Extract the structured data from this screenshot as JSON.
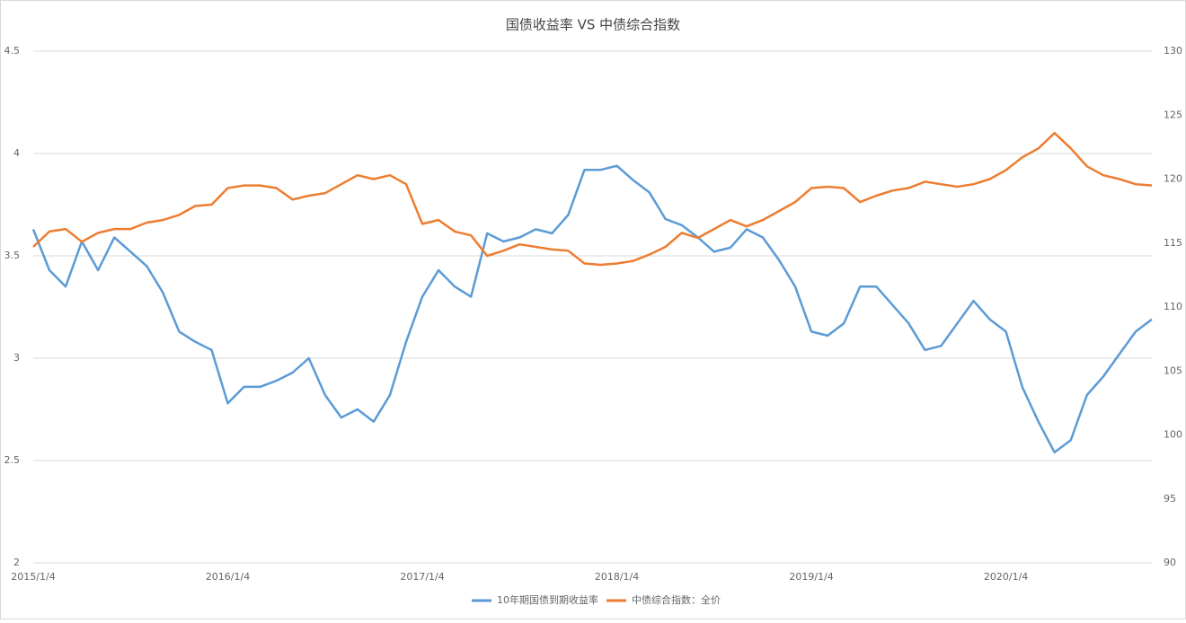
{
  "chart_data": {
    "type": "line",
    "title": "国债收益率 VS 中债综合指数",
    "categories": [
      "2015/1/4",
      null,
      null,
      null,
      null,
      null,
      null,
      null,
      null,
      null,
      null,
      null,
      "2016/1/4",
      null,
      null,
      null,
      null,
      null,
      null,
      null,
      null,
      null,
      null,
      null,
      "2017/1/4",
      null,
      null,
      null,
      null,
      null,
      null,
      null,
      null,
      null,
      null,
      null,
      "2018/1/4",
      null,
      null,
      null,
      null,
      null,
      null,
      null,
      null,
      null,
      null,
      null,
      "2019/1/4",
      null,
      null,
      null,
      null,
      null,
      null,
      null,
      null,
      null,
      null,
      null,
      "2020/1/4",
      null,
      null,
      null,
      null,
      null,
      null,
      null,
      null,
      null
    ],
    "series": [
      {
        "name": "10年期国债到期收益率",
        "color": "#5b9bd5",
        "values": [
          3.63,
          3.43,
          3.35,
          3.57,
          3.43,
          3.59,
          3.52,
          3.45,
          3.32,
          3.13,
          3.08,
          3.04,
          2.78,
          2.86,
          2.86,
          2.89,
          2.93,
          3.0,
          2.82,
          2.71,
          2.75,
          2.69,
          2.82,
          3.08,
          3.3,
          3.43,
          3.35,
          3.3,
          3.61,
          3.57,
          3.59,
          3.63,
          3.61,
          3.7,
          3.92,
          3.92,
          3.94,
          3.87,
          3.81,
          3.68,
          3.65,
          3.59,
          3.52,
          3.54,
          3.63,
          3.59,
          3.48,
          3.35,
          3.13,
          3.11,
          3.17,
          3.35,
          3.35,
          3.26,
          3.17,
          3.04,
          3.06,
          3.17,
          3.28,
          3.19,
          3.13,
          2.86,
          2.69,
          2.54,
          2.6,
          2.82,
          2.91,
          3.02,
          3.13,
          3.19
        ]
      },
      {
        "name": "中债综合指数：全价",
        "color": "#ed7d31",
        "axis": "y2",
        "values": [
          114.7,
          115.9,
          116.1,
          115.1,
          115.8,
          116.1,
          116.1,
          116.6,
          116.8,
          117.2,
          117.9,
          118.0,
          119.3,
          119.5,
          119.5,
          119.3,
          118.4,
          118.7,
          118.9,
          119.6,
          120.3,
          120.0,
          120.3,
          119.6,
          116.5,
          116.8,
          115.9,
          115.6,
          114.0,
          114.4,
          114.9,
          114.7,
          114.5,
          114.4,
          113.4,
          113.3,
          113.4,
          113.6,
          114.1,
          114.7,
          115.8,
          115.4,
          116.1,
          116.8,
          116.3,
          116.8,
          117.5,
          118.2,
          119.3,
          119.4,
          119.3,
          118.2,
          118.7,
          119.1,
          119.3,
          119.8,
          119.6,
          119.4,
          119.6,
          120.0,
          120.7,
          121.7,
          122.4,
          123.6,
          122.4,
          121.0,
          120.3,
          120.0,
          119.6,
          119.5
        ]
      }
    ],
    "ylim": [
      2,
      4.5
    ],
    "yticks": [
      2,
      2.5,
      3,
      3.5,
      4,
      4.5
    ],
    "y2lim": [
      90,
      130
    ],
    "y2ticks": [
      90,
      95,
      100,
      105,
      110,
      115,
      120,
      125,
      130
    ],
    "grid": true,
    "legend": "bottom"
  }
}
